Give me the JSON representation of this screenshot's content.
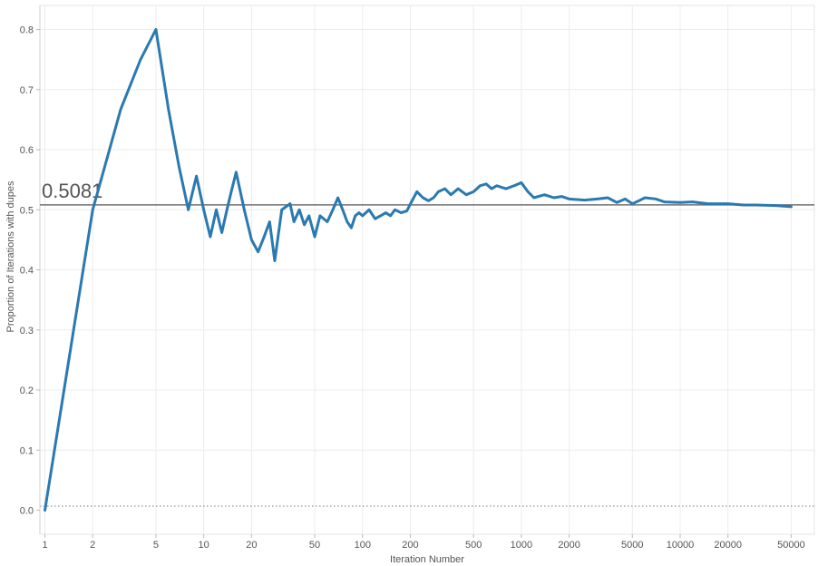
{
  "chart_data": {
    "type": "line",
    "title": "",
    "xlabel": "Iteration Number",
    "ylabel": "Proportion of Iterations with dupes",
    "x_scale": "log",
    "xlim": [
      0.93,
      70000
    ],
    "ylim": [
      -0.04,
      0.84
    ],
    "x_ticks": [
      1,
      2,
      5,
      10,
      20,
      50,
      100,
      200,
      500,
      1000,
      2000,
      5000,
      10000,
      20000,
      50000
    ],
    "x_tick_labels": [
      "1",
      "2",
      "5",
      "10",
      "20",
      "50",
      "100",
      "200",
      "500",
      "1000",
      "2000",
      "5000",
      "10000",
      "20000",
      "50000"
    ],
    "y_ticks": [
      0.0,
      0.1,
      0.2,
      0.3,
      0.4,
      0.5,
      0.6,
      0.7,
      0.8
    ],
    "y_tick_labels": [
      "0.0",
      "0.1",
      "0.2",
      "0.3",
      "0.4",
      "0.5",
      "0.6",
      "0.7",
      "0.8"
    ],
    "grid": true,
    "line_color": "#2a79b0",
    "reference_line": {
      "value": 0.5081,
      "label": "0.5081",
      "color": "#707070"
    },
    "series": [
      {
        "x": [
          1,
          2,
          3,
          4,
          5,
          6,
          7,
          8,
          9,
          10,
          11,
          12,
          13,
          14,
          15,
          16,
          18,
          20,
          22,
          24,
          26,
          28,
          31,
          35,
          37,
          40,
          43,
          46,
          50,
          54,
          60,
          65,
          70,
          75,
          80,
          85,
          90,
          95,
          100,
          110,
          120,
          130,
          140,
          150,
          160,
          175,
          190,
          205,
          220,
          240,
          260,
          280,
          300,
          330,
          360,
          400,
          450,
          500,
          550,
          600,
          650,
          700,
          800,
          900,
          1000,
          1100,
          1200,
          1400,
          1600,
          1800,
          2000,
          2500,
          3000,
          3500,
          4000,
          4500,
          5000,
          5500,
          6000,
          7000,
          8000,
          10000,
          12000,
          15000,
          20000,
          25000,
          30000,
          40000,
          50000
        ],
        "y": [
          0.0,
          0.5,
          0.667,
          0.75,
          0.8,
          0.667,
          0.571,
          0.5,
          0.556,
          0.5,
          0.455,
          0.5,
          0.462,
          0.5,
          0.533,
          0.5625,
          0.5,
          0.45,
          0.43,
          0.455,
          0.48,
          0.415,
          0.5,
          0.51,
          0.48,
          0.5,
          0.475,
          0.49,
          0.455,
          0.49,
          0.48,
          0.5,
          0.52,
          0.5,
          0.48,
          0.47,
          0.49,
          0.495,
          0.49,
          0.5,
          0.485,
          0.49,
          0.495,
          0.49,
          0.5,
          0.495,
          0.498,
          0.515,
          0.53,
          0.52,
          0.515,
          0.52,
          0.53,
          0.535,
          0.525,
          0.535,
          0.525,
          0.53,
          0.54,
          0.543,
          0.535,
          0.54,
          0.535,
          0.54,
          0.545,
          0.53,
          0.52,
          0.525,
          0.52,
          0.522,
          0.518,
          0.516,
          0.518,
          0.52,
          0.512,
          0.518,
          0.51,
          0.515,
          0.52,
          0.518,
          0.513,
          0.512,
          0.513,
          0.51,
          0.51,
          0.508,
          0.508,
          0.507,
          0.505
        ]
      }
    ]
  }
}
